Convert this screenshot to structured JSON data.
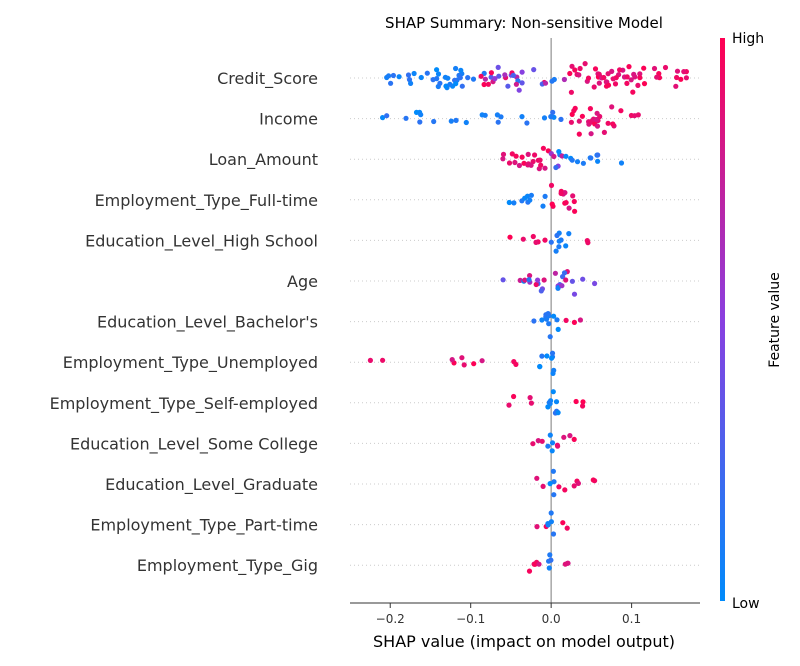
{
  "chart_data": {
    "type": "scatter",
    "subtype": "shap-beeswarm",
    "title": "SHAP Summary: Non-sensitive Model",
    "xlabel": "SHAP value (impact on model output)",
    "xlim": [
      -0.25,
      0.185
    ],
    "x_ticks": [
      {
        "value": -0.2,
        "label": "−0.2"
      },
      {
        "value": -0.1,
        "label": "−0.1"
      },
      {
        "value": 0.0,
        "label": "0.0"
      },
      {
        "value": 0.1,
        "label": "0.1"
      }
    ],
    "colorbar": {
      "label": "Feature value",
      "high_label": "High",
      "low_label": "Low",
      "high_color": "#ff0052",
      "mid_color": "#8a3fe0",
      "low_color": "#008bfb"
    },
    "grid": false,
    "features": [
      {
        "name": "Credit_Score",
        "min": -0.21,
        "max": 0.17,
        "spread": [
          [
            -0.21,
            -0.16,
            0.04,
            "low"
          ],
          [
            -0.16,
            -0.09,
            0.07,
            "low"
          ],
          [
            -0.09,
            -0.02,
            0.07,
            "mixed"
          ],
          [
            -0.02,
            0.02,
            0.03,
            "mixed"
          ],
          [
            0.02,
            0.07,
            0.09,
            "high"
          ],
          [
            0.07,
            0.12,
            0.09,
            "high"
          ],
          [
            0.12,
            0.17,
            0.05,
            "high"
          ]
        ]
      },
      {
        "name": "Income",
        "min": -0.21,
        "max": 0.11,
        "spread": [
          [
            -0.21,
            -0.13,
            0.02,
            "low"
          ],
          [
            -0.13,
            -0.05,
            0.02,
            "low"
          ],
          [
            -0.05,
            0.02,
            0.02,
            "low"
          ],
          [
            0.02,
            0.05,
            0.09,
            "high"
          ],
          [
            0.05,
            0.08,
            0.08,
            "high"
          ],
          [
            0.08,
            0.11,
            0.03,
            "high"
          ]
        ]
      },
      {
        "name": "Loan_Amount",
        "min": -0.06,
        "max": 0.09,
        "spread": [
          [
            -0.06,
            -0.03,
            0.06,
            "high"
          ],
          [
            -0.03,
            0.0,
            0.09,
            "high"
          ],
          [
            0.0,
            0.02,
            0.08,
            "mixed"
          ],
          [
            0.02,
            0.05,
            0.04,
            "low"
          ],
          [
            0.05,
            0.09,
            0.02,
            "low"
          ]
        ]
      },
      {
        "name": "Employment_Type_Full-time",
        "min": -0.07,
        "max": 0.03,
        "spread": [
          [
            -0.07,
            -0.03,
            0.02,
            "low"
          ],
          [
            -0.03,
            0.0,
            0.04,
            "low"
          ],
          [
            0.0,
            0.03,
            0.09,
            "high"
          ]
        ]
      },
      {
        "name": "Education_Level_High School",
        "min": -0.055,
        "max": 0.055,
        "spread": [
          [
            -0.055,
            -0.02,
            0.02,
            "high"
          ],
          [
            -0.02,
            0.0,
            0.03,
            "high"
          ],
          [
            0.0,
            0.015,
            0.09,
            "low"
          ],
          [
            0.015,
            0.03,
            0.03,
            "low"
          ],
          [
            0.04,
            0.055,
            0.01,
            "high"
          ]
        ]
      },
      {
        "name": "Age",
        "min": -0.07,
        "max": 0.055,
        "spread": [
          [
            -0.07,
            -0.03,
            0.02,
            "mixed"
          ],
          [
            -0.03,
            0.0,
            0.06,
            "mixed"
          ],
          [
            0.0,
            0.03,
            0.08,
            "mixed"
          ],
          [
            0.03,
            0.055,
            0.02,
            "mixed"
          ]
        ]
      },
      {
        "name": "Education_Level_Bachelor's",
        "min": -0.025,
        "max": 0.045,
        "spread": [
          [
            -0.025,
            -0.005,
            0.05,
            "low"
          ],
          [
            -0.005,
            0.01,
            0.09,
            "low"
          ],
          [
            0.01,
            0.045,
            0.02,
            "high"
          ]
        ]
      },
      {
        "name": "Employment_Type_Unemployed",
        "min": -0.23,
        "max": 0.005,
        "spread": [
          [
            -0.23,
            -0.2,
            0.01,
            "high"
          ],
          [
            -0.19,
            -0.06,
            0.01,
            "high"
          ],
          [
            -0.05,
            -0.03,
            0.01,
            "high"
          ],
          [
            -0.015,
            0.005,
            0.09,
            "low"
          ]
        ]
      },
      {
        "name": "Employment_Type_Self-employed",
        "min": -0.055,
        "max": 0.04,
        "spread": [
          [
            -0.055,
            -0.01,
            0.02,
            "high"
          ],
          [
            -0.01,
            0.01,
            0.09,
            "low"
          ],
          [
            0.01,
            0.04,
            0.02,
            "high"
          ]
        ]
      },
      {
        "name": "Education_Level_Some College",
        "min": -0.025,
        "max": 0.03,
        "spread": [
          [
            -0.025,
            -0.005,
            0.03,
            "high"
          ],
          [
            -0.005,
            0.005,
            0.09,
            "low"
          ],
          [
            0.005,
            0.03,
            0.04,
            "high"
          ]
        ]
      },
      {
        "name": "Education_Level_Graduate",
        "min": -0.03,
        "max": 0.055,
        "spread": [
          [
            -0.03,
            -0.005,
            0.02,
            "high"
          ],
          [
            -0.005,
            0.005,
            0.09,
            "low"
          ],
          [
            0.005,
            0.04,
            0.03,
            "high"
          ],
          [
            0.045,
            0.055,
            0.01,
            "high"
          ]
        ]
      },
      {
        "name": "Employment_Type_Part-time",
        "min": -0.025,
        "max": 0.02,
        "spread": [
          [
            -0.025,
            -0.005,
            0.02,
            "high"
          ],
          [
            -0.005,
            0.006,
            0.09,
            "low"
          ],
          [
            0.006,
            0.02,
            0.02,
            "high"
          ]
        ]
      },
      {
        "name": "Employment_Type_Gig",
        "min": -0.04,
        "max": 0.025,
        "spread": [
          [
            -0.04,
            -0.005,
            0.03,
            "high"
          ],
          [
            -0.005,
            0.005,
            0.09,
            "low"
          ],
          [
            0.005,
            0.025,
            0.03,
            "high"
          ]
        ]
      }
    ]
  }
}
